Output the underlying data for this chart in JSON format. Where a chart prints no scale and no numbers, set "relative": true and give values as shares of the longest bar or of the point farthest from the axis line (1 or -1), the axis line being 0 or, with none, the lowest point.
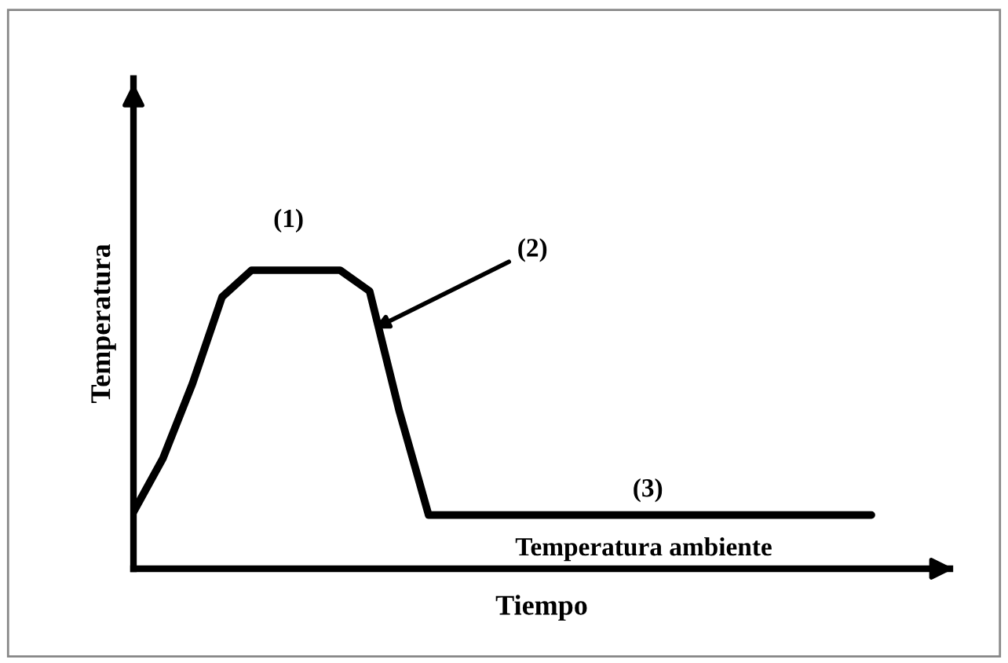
{
  "chart_data": {
    "type": "line",
    "relative": true,
    "xlabel": "Tiempo",
    "ylabel": "Temperatura",
    "categories": [
      null,
      null,
      null,
      null,
      null,
      null,
      null,
      null,
      null,
      null,
      null,
      null,
      null,
      null,
      null,
      null,
      null,
      null,
      null,
      null,
      null,
      null,
      null,
      null,
      null,
      null
    ],
    "series": [
      {
        "color": "#000000",
        "values": [
          0.19,
          0.37,
          0.62,
          0.91,
          1,
          1,
          1,
          1,
          0.93,
          0.53,
          0.18,
          0.18,
          0.18,
          0.18,
          0.18,
          0.18,
          0.18,
          0.18,
          0.18,
          0.18,
          0.18,
          0.18,
          0.18,
          0.18,
          0.18,
          0.18
        ]
      }
    ],
    "annotations": [
      "(1)",
      "(2)",
      "(3)",
      "Temperatura ambiente"
    ],
    "line_style": "solid",
    "marker": "none",
    "legend": false
  }
}
